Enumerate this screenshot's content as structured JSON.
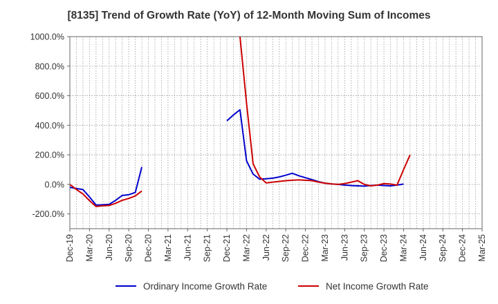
{
  "chart_data": {
    "type": "line",
    "title": "[8135]  Trend of Growth Rate (YoY) of 12-Month Moving Sum of Incomes",
    "xlabel": "",
    "ylabel": "",
    "ylim": [
      -300,
      1000
    ],
    "yticks": [
      1000,
      800,
      600,
      400,
      200,
      0,
      -200
    ],
    "ytick_labels": [
      "1000.0%",
      "800.0%",
      "600.0%",
      "400.0%",
      "200.0%",
      "0.0%",
      "-200.0%"
    ],
    "x_tick_labels": [
      "Dec-19",
      "Mar-20",
      "Jun-20",
      "Sep-20",
      "Dec-20",
      "Mar-21",
      "Jun-21",
      "Sep-21",
      "Dec-21",
      "Mar-22",
      "Jun-22",
      "Sep-22",
      "Dec-22",
      "Mar-23",
      "Jun-23",
      "Sep-23",
      "Dec-23",
      "Mar-24",
      "Jun-24",
      "Sep-24",
      "Dec-24",
      "Mar-25"
    ],
    "grid": true,
    "legend_position": "bottom",
    "series": [
      {
        "name": "Ordinary Income Growth Rate",
        "color": "#0000cc",
        "values": [
          -20,
          -28,
          -35,
          -85,
          -140,
          -138,
          -135,
          -108,
          -75,
          -70,
          -55,
          118,
          null,
          null,
          null,
          null,
          null,
          null,
          null,
          null,
          null,
          null,
          null,
          null,
          430,
          470,
          505,
          160,
          70,
          35,
          38,
          42,
          50,
          62,
          75,
          58,
          45,
          32,
          18,
          8,
          3,
          0,
          -5,
          -8,
          -10,
          -12,
          -8,
          -5,
          -8,
          -10,
          -5,
          2
        ]
      },
      {
        "name": "Net Income Growth Rate",
        "color": "#cc0000",
        "values": [
          0,
          -35,
          -65,
          -110,
          -150,
          -145,
          -143,
          -128,
          -108,
          -95,
          -78,
          -45,
          null,
          null,
          null,
          null,
          null,
          null,
          null,
          null,
          null,
          null,
          null,
          null,
          null,
          null,
          1000,
          550,
          140,
          50,
          10,
          15,
          20,
          25,
          28,
          30,
          28,
          25,
          15,
          8,
          3,
          0,
          5,
          15,
          25,
          0,
          -10,
          -5,
          5,
          2,
          -5,
          100,
          200
        ]
      }
    ]
  }
}
